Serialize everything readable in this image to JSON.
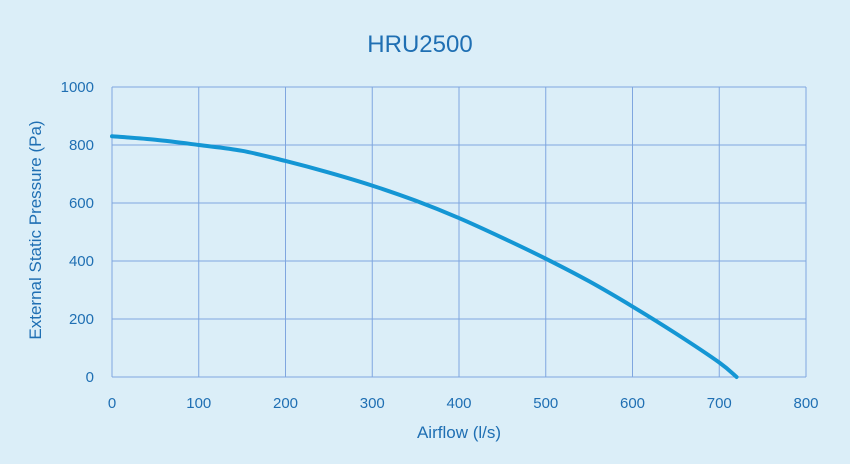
{
  "chart_data": {
    "type": "line",
    "title": "HRU2500",
    "xlabel": "Airflow (l/s)",
    "ylabel": "External Static Pressure (Pa)",
    "xlim": [
      0,
      800
    ],
    "ylim": [
      0,
      1000
    ],
    "xticks": [
      "0",
      "100",
      "200",
      "300",
      "400",
      "500",
      "600",
      "700",
      "800"
    ],
    "yticks": [
      "0",
      "200",
      "400",
      "600",
      "800",
      "1000"
    ],
    "grid": true,
    "series": [
      {
        "color": "#1496d4",
        "points": [
          [
            0,
            830
          ],
          [
            50,
            818
          ],
          [
            100,
            800
          ],
          [
            150,
            780
          ],
          [
            200,
            745
          ],
          [
            250,
            705
          ],
          [
            300,
            660
          ],
          [
            350,
            608
          ],
          [
            400,
            548
          ],
          [
            450,
            480
          ],
          [
            500,
            408
          ],
          [
            550,
            330
          ],
          [
            600,
            243
          ],
          [
            650,
            150
          ],
          [
            700,
            50
          ],
          [
            720,
            0
          ]
        ]
      }
    ]
  }
}
